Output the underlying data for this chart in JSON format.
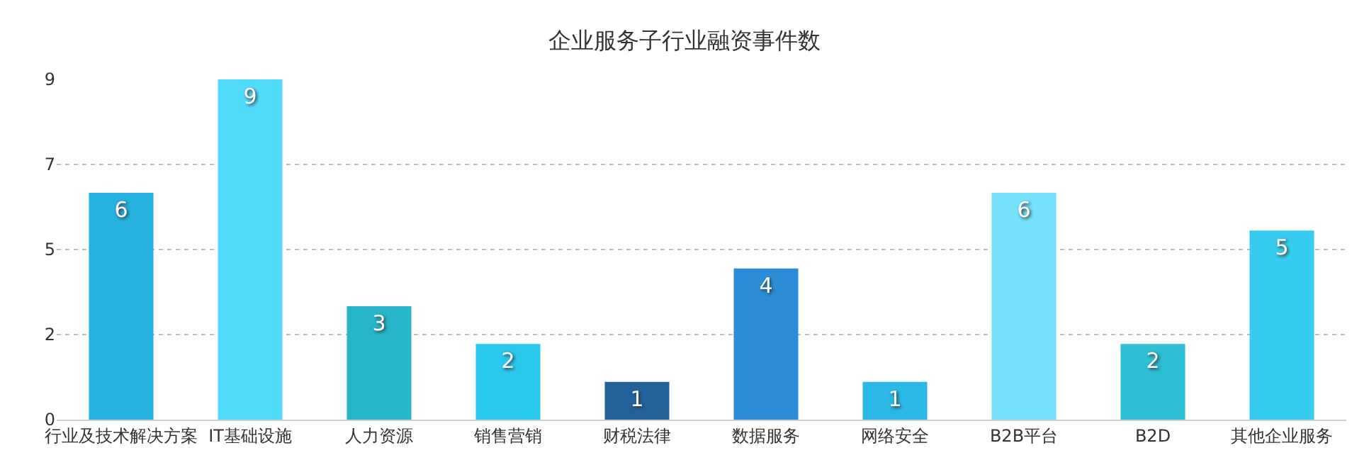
{
  "chart_data": {
    "type": "bar",
    "title": "企业服务子行业融资事件数",
    "categories": [
      "行业及技术解决方案",
      "IT基础设施",
      "人力资源",
      "销售营销",
      "财税法律",
      "数据服务",
      "网络安全",
      "B2B平台",
      "B2D",
      "其他企业服务"
    ],
    "values": [
      6,
      9,
      3,
      2,
      1,
      4,
      1,
      6,
      2,
      5
    ],
    "colors": [
      "#27b1e0",
      "#52dcfb",
      "#27b5c9",
      "#2ac8ee",
      "#24609a",
      "#2a8dd6",
      "#2ab8e6",
      "#75e1fb",
      "#2dbfd4",
      "#36ccef"
    ],
    "ylim": [
      0,
      9
    ],
    "yticks": [
      0,
      {
        "value": 2.25,
        "label": "2"
      },
      {
        "value": 4.5,
        "label": "5"
      },
      {
        "value": 6.75,
        "label": "7"
      },
      9
    ],
    "grid": "y",
    "data_labels": true
  }
}
